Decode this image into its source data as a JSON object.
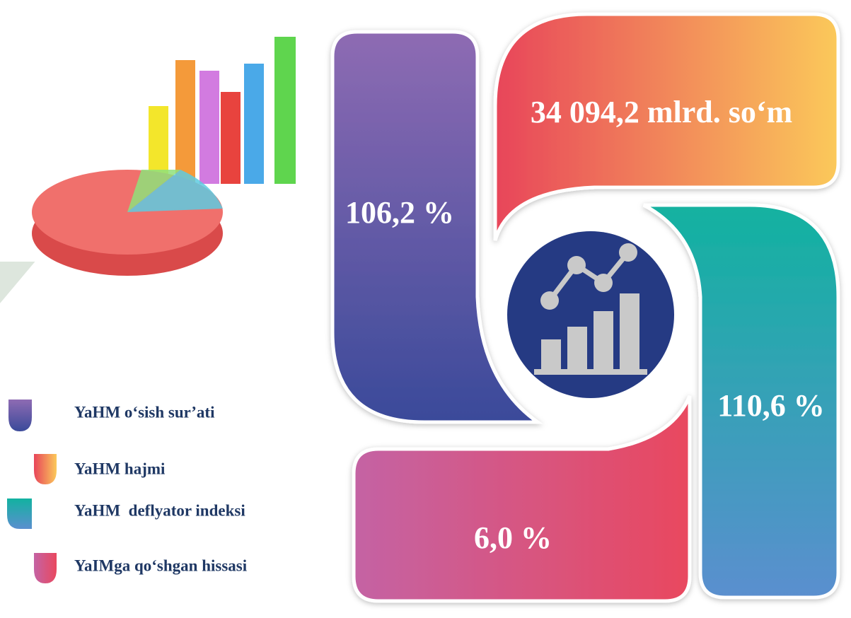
{
  "items": [
    {
      "label": "YaHM o‘sish sur’ati",
      "value": "106,2 %"
    },
    {
      "label": "YaHM hajmi",
      "value": "34 094,2 mlrd. so‘m"
    },
    {
      "label": "YaHM  deflyator indeksi",
      "value": "110,6 %"
    },
    {
      "label": "YaIMga qo‘shgan hissasi",
      "value": "6,0 %"
    }
  ]
}
